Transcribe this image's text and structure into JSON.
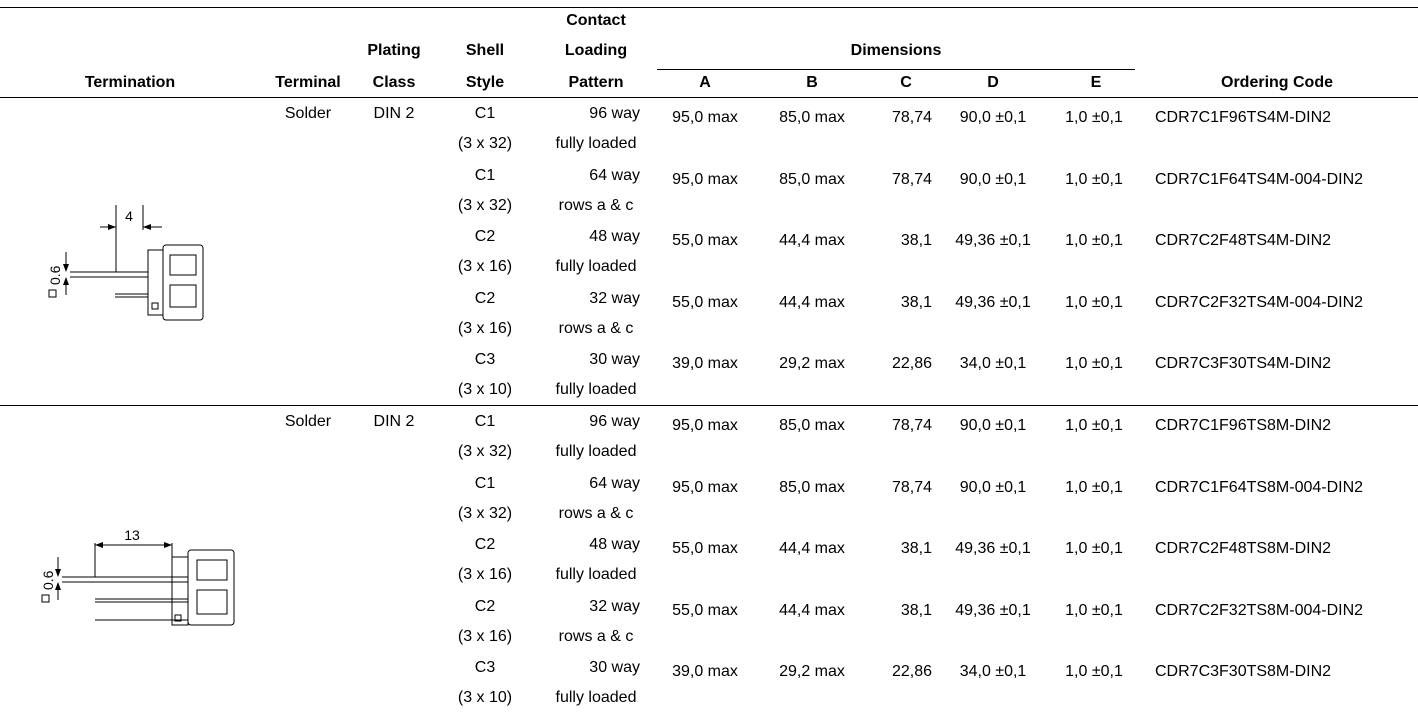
{
  "header": {
    "termination": "Termination",
    "terminal": "Terminal",
    "plating_class": [
      "Plating",
      "Class"
    ],
    "shell_style": [
      "Shell",
      "Style"
    ],
    "contact_loading_pattern": [
      "Contact",
      "Loading",
      "Pattern"
    ],
    "dimensions": "Dimensions",
    "dim_cols": [
      "A",
      "B",
      "C",
      "D",
      "E"
    ],
    "ordering_code": "Ordering Code"
  },
  "groups": [
    {
      "terminal": "Solder",
      "plating": "DIN 2",
      "drawing": {
        "length_label": "4",
        "pin_label": "0.6",
        "pin_symbol": "square-icon"
      },
      "rows": [
        {
          "shell": "C1",
          "shell_sub": "(3 x 32)",
          "pattern": "96 way",
          "pattern_sub": "fully loaded",
          "A": "95,0 max",
          "B": "85,0 max",
          "C": "78,74",
          "D": "90,0 ±0,1",
          "E": "1,0 ±0,1",
          "code": "CDR7C1F96TS4M-DIN2"
        },
        {
          "shell": "C1",
          "shell_sub": "(3 x 32)",
          "pattern": "64 way",
          "pattern_sub": "rows a & c",
          "A": "95,0 max",
          "B": "85,0 max",
          "C": "78,74",
          "D": "90,0 ±0,1",
          "E": "1,0 ±0,1",
          "code": "CDR7C1F64TS4M-004-DIN2"
        },
        {
          "shell": "C2",
          "shell_sub": "(3 x 16)",
          "pattern": "48 way",
          "pattern_sub": "fully loaded",
          "A": "55,0 max",
          "B": "44,4 max",
          "C": "38,1",
          "D": "49,36 ±0,1",
          "E": "1,0 ±0,1",
          "code": "CDR7C2F48TS4M-DIN2"
        },
        {
          "shell": "C2",
          "shell_sub": "(3 x 16)",
          "pattern": "32 way",
          "pattern_sub": "rows a & c",
          "A": "55,0 max",
          "B": "44,4 max",
          "C": "38,1",
          "D": "49,36 ±0,1",
          "E": "1,0 ±0,1",
          "code": "CDR7C2F32TS4M-004-DIN2"
        },
        {
          "shell": "C3",
          "shell_sub": "(3 x 10)",
          "pattern": "30 way",
          "pattern_sub": "fully loaded",
          "A": "39,0 max",
          "B": "29,2 max",
          "C": "22,86",
          "D": "34,0 ±0,1",
          "E": "1,0 ±0,1",
          "code": "CDR7C3F30TS4M-DIN2"
        }
      ]
    },
    {
      "terminal": "Solder",
      "plating": "DIN 2",
      "drawing": {
        "length_label": "13",
        "pin_label": "0.6",
        "pin_symbol": "square-icon"
      },
      "rows": [
        {
          "shell": "C1",
          "shell_sub": "(3 x 32)",
          "pattern": "96 way",
          "pattern_sub": "fully loaded",
          "A": "95,0 max",
          "B": "85,0 max",
          "C": "78,74",
          "D": "90,0 ±0,1",
          "E": "1,0 ±0,1",
          "code": "CDR7C1F96TS8M-DIN2"
        },
        {
          "shell": "C1",
          "shell_sub": "(3 x 32)",
          "pattern": "64 way",
          "pattern_sub": "rows a & c",
          "A": "95,0 max",
          "B": "85,0 max",
          "C": "78,74",
          "D": "90,0 ±0,1",
          "E": "1,0 ±0,1",
          "code": "CDR7C1F64TS8M-004-DIN2"
        },
        {
          "shell": "C2",
          "shell_sub": "(3 x 16)",
          "pattern": "48 way",
          "pattern_sub": "fully loaded",
          "A": "55,0 max",
          "B": "44,4 max",
          "C": "38,1",
          "D": "49,36 ±0,1",
          "E": "1,0 ±0,1",
          "code": "CDR7C2F48TS8M-DIN2"
        },
        {
          "shell": "C2",
          "shell_sub": "(3 x 16)",
          "pattern": "32 way",
          "pattern_sub": "rows a & c",
          "A": "55,0 max",
          "B": "44,4 max",
          "C": "38,1",
          "D": "49,36 ±0,1",
          "E": "1,0 ±0,1",
          "code": "CDR7C2F32TS8M-004-DIN2"
        },
        {
          "shell": "C3",
          "shell_sub": "(3 x 10)",
          "pattern": "30 way",
          "pattern_sub": "fully loaded",
          "A": "39,0 max",
          "B": "29,2 max",
          "C": "22,86",
          "D": "34,0 ±0,1",
          "E": "1,0 ±0,1",
          "code": "CDR7C3F30TS8M-DIN2"
        }
      ]
    }
  ]
}
